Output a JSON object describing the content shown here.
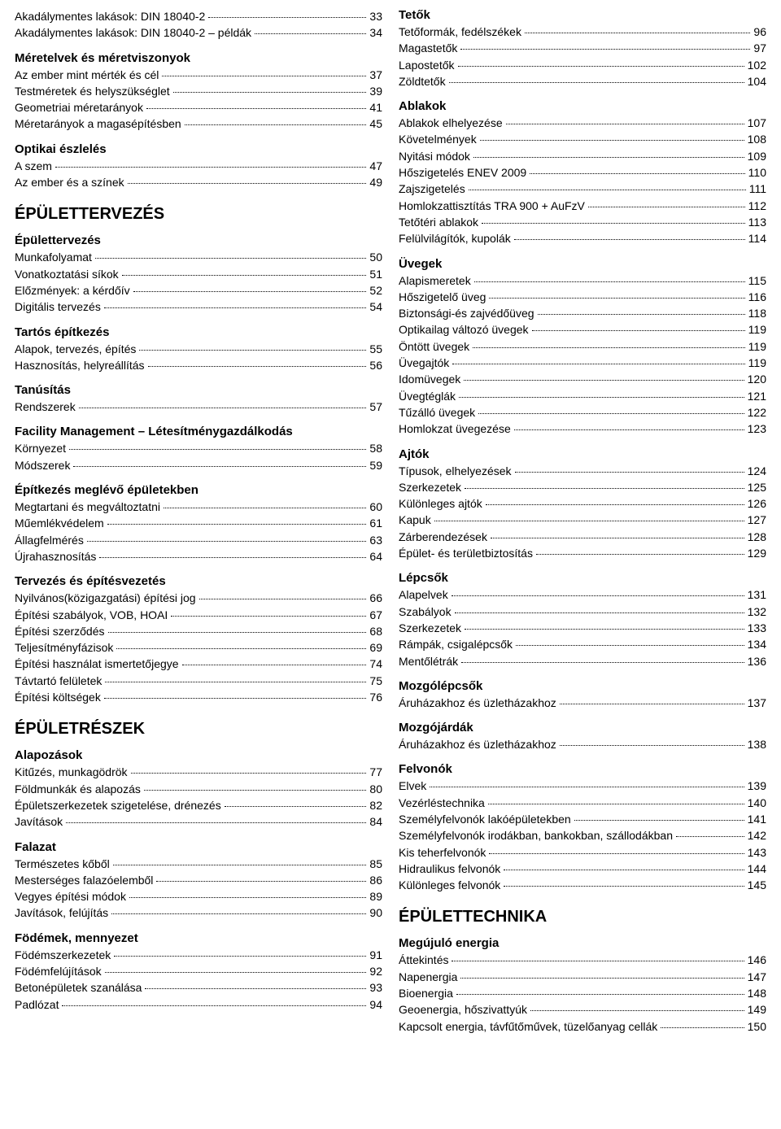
{
  "columns": [
    {
      "blocks": [
        {
          "type": "entries",
          "entries": [
            {
              "label": "Akadálymentes lakások: DIN 18040-2",
              "page": "33"
            },
            {
              "label": "Akadálymentes lakások: DIN 18040-2 – példák",
              "page": "34"
            }
          ]
        },
        {
          "type": "h2",
          "text": "Méretelvek és méretviszonyok"
        },
        {
          "type": "entries",
          "entries": [
            {
              "label": "Az ember mint mérték és cél",
              "page": "37"
            },
            {
              "label": "Testméretek és helyszükséglet",
              "page": "39"
            },
            {
              "label": "Geometriai méretarányok",
              "page": "41"
            },
            {
              "label": "Méretarányok a magasépítésben",
              "page": "45"
            }
          ]
        },
        {
          "type": "h2",
          "text": "Optikai észlelés"
        },
        {
          "type": "entries",
          "entries": [
            {
              "label": "A szem",
              "page": "47"
            },
            {
              "label": "Az ember és a színek",
              "page": "49"
            }
          ]
        },
        {
          "type": "h1",
          "text": "ÉPÜLETTERVEZÉS"
        },
        {
          "type": "h2",
          "text": "Épülettervezés"
        },
        {
          "type": "entries",
          "entries": [
            {
              "label": "Munkafolyamat",
              "page": "50"
            },
            {
              "label": "Vonatkoztatási síkok",
              "page": "51"
            },
            {
              "label": "Előzmények: a kérdőív",
              "page": "52"
            },
            {
              "label": "Digitális tervezés",
              "page": "54"
            }
          ]
        },
        {
          "type": "h2",
          "text": "Tartós építkezés"
        },
        {
          "type": "entries",
          "entries": [
            {
              "label": "Alapok, tervezés, építés",
              "page": "55"
            },
            {
              "label": "Hasznosítás, helyreállítás",
              "page": "56"
            }
          ]
        },
        {
          "type": "h2",
          "text": "Tanúsítás"
        },
        {
          "type": "entries",
          "entries": [
            {
              "label": "Rendszerek",
              "page": "57"
            }
          ]
        },
        {
          "type": "h2",
          "text": "Facility Management – Létesítménygazdálkodás"
        },
        {
          "type": "entries",
          "entries": [
            {
              "label": "Környezet",
              "page": "58"
            },
            {
              "label": "Módszerek",
              "page": "59"
            }
          ]
        },
        {
          "type": "h2",
          "text": "Építkezés meglévő épületekben"
        },
        {
          "type": "entries",
          "entries": [
            {
              "label": "Megtartani és megváltoztatni",
              "page": "60"
            },
            {
              "label": "Műemlékvédelem",
              "page": "61"
            },
            {
              "label": "Állagfelmérés",
              "page": "63"
            },
            {
              "label": "Újrahasznosítás",
              "page": "64"
            }
          ]
        },
        {
          "type": "h2",
          "text": "Tervezés és építésvezetés"
        },
        {
          "type": "entries",
          "entries": [
            {
              "label": "Nyilvános(közigazgatási) építési jog",
              "page": "66"
            },
            {
              "label": "Építési szabályok, VOB, HOAI",
              "page": "67"
            },
            {
              "label": "Építési szerződés",
              "page": "68"
            },
            {
              "label": "Teljesítményfázisok",
              "page": "69"
            },
            {
              "label": "Építési használat ismertetőjegye",
              "page": "74"
            },
            {
              "label": "Távtartó felületek",
              "page": "75"
            },
            {
              "label": "Építési költségek",
              "page": "76"
            }
          ]
        },
        {
          "type": "h1",
          "text": "ÉPÜLETRÉSZEK"
        },
        {
          "type": "h2",
          "text": "Alapozások"
        },
        {
          "type": "entries",
          "entries": [
            {
              "label": "Kitűzés, munkagödrök",
              "page": "77"
            },
            {
              "label": "Földmunkák és alapozás",
              "page": "80"
            },
            {
              "label": "Épületszerkezetek szigetelése, drénezés",
              "page": "82"
            },
            {
              "label": "Javítások",
              "page": "84"
            }
          ]
        },
        {
          "type": "h2",
          "text": "Falazat"
        },
        {
          "type": "entries",
          "entries": [
            {
              "label": "Természetes kőből",
              "page": "85"
            },
            {
              "label": "Mesterséges falazóelemből",
              "page": "86"
            },
            {
              "label": "Vegyes építési módok",
              "page": "89"
            },
            {
              "label": "Javítások, felújítás",
              "page": "90"
            }
          ]
        },
        {
          "type": "h2",
          "text": "Födémek, mennyezet"
        },
        {
          "type": "entries",
          "entries": [
            {
              "label": "Födémszerkezetek",
              "page": "91"
            },
            {
              "label": "Födémfelújítások",
              "page": "92"
            },
            {
              "label": "Betonépületek szanálása",
              "page": "93"
            },
            {
              "label": "Padlózat",
              "page": "94"
            }
          ]
        }
      ]
    },
    {
      "blocks": [
        {
          "type": "h2",
          "first": true,
          "text": "Tetők"
        },
        {
          "type": "entries",
          "entries": [
            {
              "label": "Tetőformák, fedélszékek",
              "page": "96"
            },
            {
              "label": "Magastetők",
              "page": "97"
            },
            {
              "label": "Lapostetők",
              "page": "102"
            },
            {
              "label": "Zöldtetők",
              "page": "104"
            }
          ]
        },
        {
          "type": "h2",
          "text": "Ablakok"
        },
        {
          "type": "entries",
          "entries": [
            {
              "label": "Ablakok elhelyezése",
              "page": "107"
            },
            {
              "label": "Követelmények",
              "page": "108"
            },
            {
              "label": "Nyitási módok",
              "page": "109"
            },
            {
              "label": "Hőszigetelés ENEV 2009",
              "page": "110"
            },
            {
              "label": "Zajszigetelés",
              "page": "111"
            },
            {
              "label": "Homlokzattisztítás TRA 900 + AuFzV",
              "page": "112"
            },
            {
              "label": "Tetőtéri ablakok",
              "page": "113"
            },
            {
              "label": "Felülvilágítók, kupolák",
              "page": "114"
            }
          ]
        },
        {
          "type": "h2",
          "text": "Üvegek"
        },
        {
          "type": "entries",
          "entries": [
            {
              "label": "Alapismeretek",
              "page": "115"
            },
            {
              "label": "Hőszigetelő üveg",
              "page": "116"
            },
            {
              "label": "Biztonsági-és zajvédőüveg",
              "page": "118"
            },
            {
              "label": "Optikailag változó üvegek",
              "page": "119"
            },
            {
              "label": "Öntött üvegek",
              "page": "119"
            },
            {
              "label": "Üvegajtók",
              "page": "119"
            },
            {
              "label": "Idomüvegek",
              "page": "120"
            },
            {
              "label": "Üvegtéglák",
              "page": "121"
            },
            {
              "label": "Tűzálló üvegek",
              "page": "122"
            },
            {
              "label": "Homlokzat üvegezése",
              "page": "123"
            }
          ]
        },
        {
          "type": "h2",
          "text": "Ajtók"
        },
        {
          "type": "entries",
          "entries": [
            {
              "label": "Típusok, elhelyezések",
              "page": "124"
            },
            {
              "label": "Szerkezetek",
              "page": "125"
            },
            {
              "label": "Különleges ajtók",
              "page": "126"
            },
            {
              "label": "Kapuk",
              "page": "127"
            },
            {
              "label": "Zárberendezések",
              "page": "128"
            },
            {
              "label": "Épület- és területbiztosítás",
              "page": "129"
            }
          ]
        },
        {
          "type": "h2",
          "text": "Lépcsők"
        },
        {
          "type": "entries",
          "entries": [
            {
              "label": "Alapelvek",
              "page": "131"
            },
            {
              "label": "Szabályok",
              "page": "132"
            },
            {
              "label": "Szerkezetek",
              "page": "133"
            },
            {
              "label": "Rámpák, csigalépcsők",
              "page": "134"
            },
            {
              "label": "Mentőlétrák",
              "page": "136"
            }
          ]
        },
        {
          "type": "h2",
          "text": "Mozgólépcsők"
        },
        {
          "type": "entries",
          "entries": [
            {
              "label": "Áruházakhoz és üzletházakhoz",
              "page": "137"
            }
          ]
        },
        {
          "type": "h2",
          "text": "Mozgójárdák"
        },
        {
          "type": "entries",
          "entries": [
            {
              "label": "Áruházakhoz és üzletházakhoz",
              "page": "138"
            }
          ]
        },
        {
          "type": "h2",
          "text": "Felvonók"
        },
        {
          "type": "entries",
          "entries": [
            {
              "label": "Elvek",
              "page": "139"
            },
            {
              "label": "Vezérléstechnika",
              "page": "140"
            },
            {
              "label": "Személyfelvonók lakóépületekben",
              "page": "141"
            },
            {
              "label": "Személyfelvonók irodákban, bankokban, szállodákban",
              "page": "142"
            },
            {
              "label": "Kis teherfelvonók",
              "page": "143"
            },
            {
              "label": "Hidraulikus felvonók",
              "page": "144"
            },
            {
              "label": "Különleges felvonók",
              "page": "145"
            }
          ]
        },
        {
          "type": "h1",
          "text": "ÉPÜLETTECHNIKA"
        },
        {
          "type": "h2",
          "text": "Megújuló energia"
        },
        {
          "type": "entries",
          "entries": [
            {
              "label": "Áttekintés",
              "page": "146"
            },
            {
              "label": "Napenergia",
              "page": "147"
            },
            {
              "label": "Bioenergia",
              "page": "148"
            },
            {
              "label": "Geoenergia, hőszivattyúk",
              "page": "149"
            },
            {
              "label": "Kapcsolt energia, távfűtőművek, tüzelőanyag cellák",
              "page": "150"
            }
          ]
        }
      ]
    }
  ]
}
